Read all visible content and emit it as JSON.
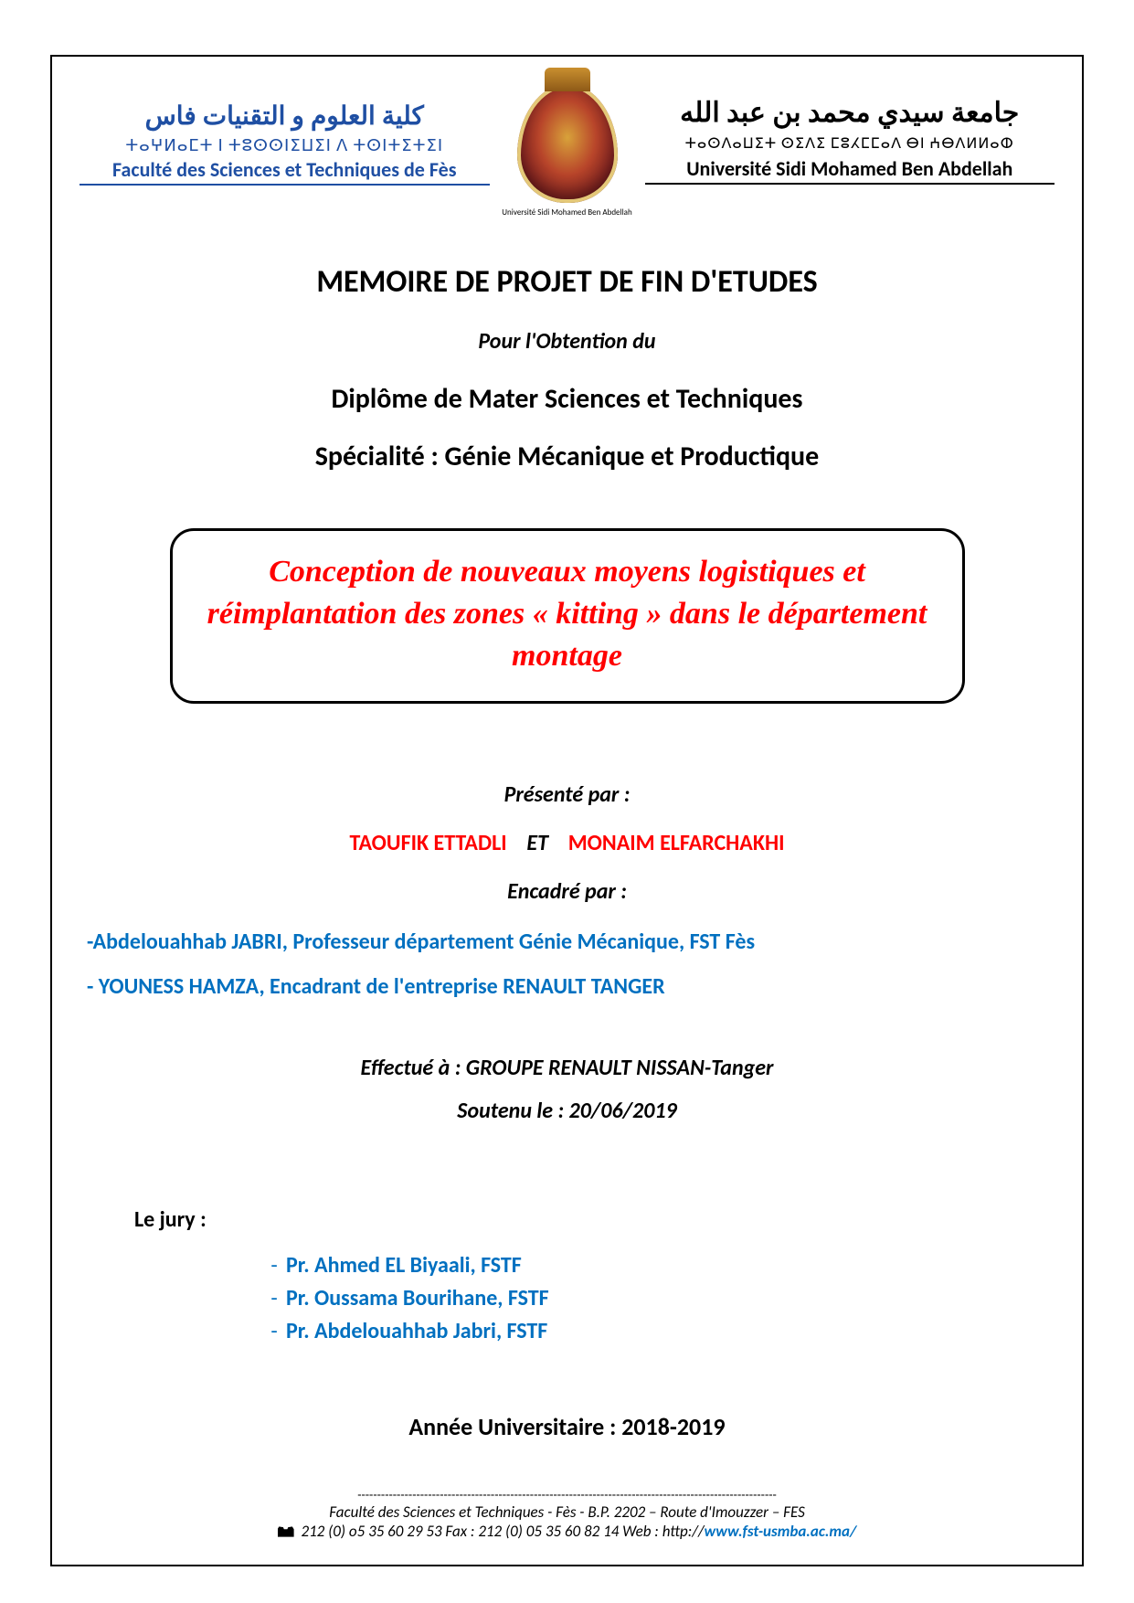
{
  "colors": {
    "brand_blue": "#1f4fa3",
    "link_blue": "#0070c0",
    "red": "#ff0000",
    "black": "#000000",
    "white": "#ffffff"
  },
  "header": {
    "left": {
      "arabic": "كلية العلوم و التقنيات فاس",
      "tifinagh": "ⵜⴰⵖⵍⴰⵎⵜ ⵏ ⵜⵓⵙⵙⵏⵉⵡⵉⵏ ⴷ ⵜⵙⵏⵜⵉⵜⵉⵏ",
      "french": "Faculté des Sciences et Techniques de Fès"
    },
    "center_caption": "Université Sidi Mohamed Ben Abdellah",
    "right": {
      "arabic": "جامعة سيدي محمد بن عبد الله",
      "tifinagh": "ⵜⴰⵙⴷⴰⵡⵉⵜ ⵙⵉⴷⵉ ⵎⵓⵃⵎⵎⴰⴷ ⴱⵏ ⵄⴱⴷⵍⵍⴰⵀ",
      "french": "Université Sidi Mohamed Ben Abdellah"
    }
  },
  "titles": {
    "main": "MEMOIRE DE PROJET DE FIN D'ETUDES",
    "for": "Pour l'Obtention du",
    "diploma": "Diplôme de Mater Sciences et Techniques",
    "speciality": "Spécialité : Génie Mécanique et Productique"
  },
  "project_title": "Conception de nouveaux moyens logistiques et réimplantation des zones « kitting » dans le département montage",
  "presented_by_label": "Présenté par :",
  "authors": {
    "a1": "TAOUFIK ETTADLI",
    "sep": "ET",
    "a2": "MONAIM ELFARCHAKHI"
  },
  "supervised_label": "Encadré par :",
  "supervisors": [
    "-Abdelouahhab JABRI, Professeur département Génie Mécanique, FST Fès",
    "- YOUNESS HAMZA, Encadrant de l'entreprise RENAULT TANGER"
  ],
  "carried_out": "Effectué à : GROUPE RENAULT NISSAN-Tanger",
  "defended": "Soutenu le : 20/06/2019",
  "jury_label": "Le jury :",
  "jury": [
    "Pr. Ahmed EL Biyaali, FSTF",
    "Pr. Oussama Bourihane, FSTF",
    "Pr. Abdelouahhab Jabri, FSTF"
  ],
  "academic_year": "Année Universitaire : 2018-2019",
  "footer": {
    "rule": "-----------------------------------------------------------------------------------------------------------",
    "line1": "Faculté des Sciences et Techniques -  Fès  - B.P. 2202 – Route d'Imouzzer – FES",
    "tel_prefix": "212 (0) o5 35 60 29 53  Fax : 212 (0) 05 35 60 82 14 Web : http://",
    "link": "www.fst-usmba.ac.ma",
    "trail": "/"
  }
}
